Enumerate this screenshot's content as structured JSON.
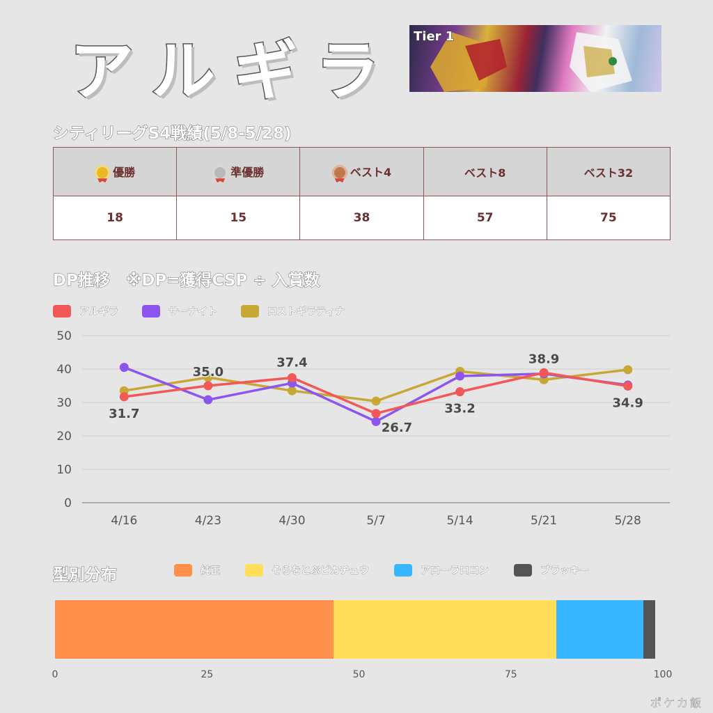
{
  "title": "アルギラ",
  "banner": {
    "tier_label": "Tier 1"
  },
  "results": {
    "section_title": "シティリーグS4戦績(5/8-5/28)",
    "headers": [
      "優勝",
      "準優勝",
      "ベスト4",
      "ベスト8",
      "ベスト32"
    ],
    "values": [
      "18",
      "15",
      "38",
      "57",
      "75"
    ]
  },
  "dp": {
    "section_title": "DP推移　※DP=獲得CSP ÷ 入賞数"
  },
  "distribution": {
    "section_title": "型別分布"
  },
  "colors": {
    "argira": "#f25858",
    "gardevoir": "#8d55f0",
    "lostgira": "#c8a835",
    "pure": "#ff914d",
    "pikachu": "#ffde59",
    "vulpix": "#38b6ff",
    "umbreon": "#545454"
  },
  "chart_data": [
    {
      "type": "line",
      "x": [
        "4/16",
        "4/23",
        "4/30",
        "5/7",
        "5/14",
        "5/21",
        "5/28"
      ],
      "ylim": [
        0,
        50
      ],
      "yticks": [
        0,
        10,
        20,
        30,
        40,
        50
      ],
      "grid": true,
      "legend": "top-left",
      "series": [
        {
          "name": "アルギラ",
          "color": "#f25858",
          "values": [
            31.7,
            35.0,
            37.4,
            26.7,
            33.2,
            38.9,
            34.9
          ],
          "labels": [
            "31.7",
            "35.0",
            "37.4",
            "26.7",
            "33.2",
            "38.9",
            "34.9"
          ]
        },
        {
          "name": "サーナイト",
          "color": "#8d55f0",
          "values": [
            40.5,
            30.8,
            35.8,
            24.3,
            37.9,
            38.6,
            35.2
          ]
        },
        {
          "name": "ロストギラティナ",
          "color": "#c8a835",
          "values": [
            33.5,
            37.5,
            33.5,
            30.4,
            39.3,
            36.8,
            39.8
          ]
        }
      ]
    },
    {
      "type": "bar",
      "orientation": "horizontal-stacked",
      "xlim": [
        0,
        100
      ],
      "xticks": [
        "0",
        "25",
        "50",
        "75",
        "100"
      ],
      "legend": "top",
      "series": [
        {
          "name": "純正",
          "color": "#ff914d",
          "value": 46.2
        },
        {
          "name": "そらをとぶピカチュウ",
          "color": "#ffde59",
          "value": 37.0
        },
        {
          "name": "アローラロコン",
          "color": "#38b6ff",
          "value": 14.4
        },
        {
          "name": "ブラッキー",
          "color": "#545454",
          "value": 1.9
        }
      ]
    }
  ]
}
